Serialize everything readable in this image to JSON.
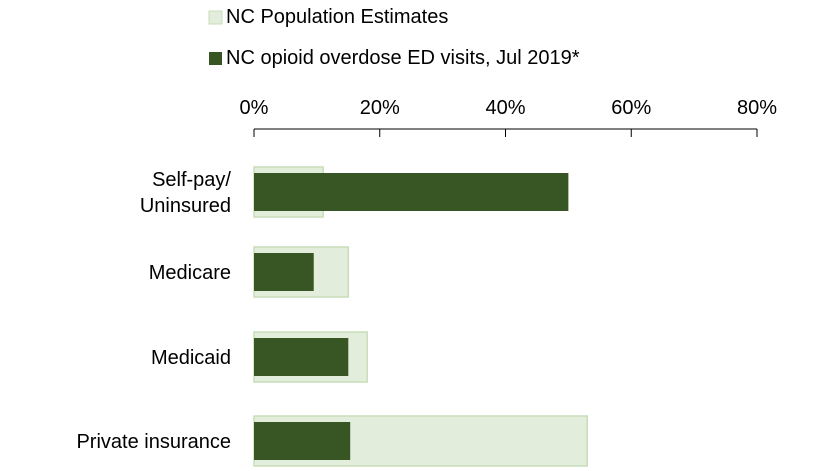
{
  "chart_data": {
    "type": "bar",
    "orientation": "horizontal",
    "categories": [
      "Self-pay/\nUninsured",
      "Medicare",
      "Medicaid",
      "Private insurance"
    ],
    "series": [
      {
        "name": "NC Population Estimates",
        "color": "#e3eddc",
        "edge_color": "#c9ddb9",
        "values": [
          11,
          15,
          18,
          53
        ]
      },
      {
        "name": "NC opioid overdose ED visits, Jul 2019*",
        "color": "#375623",
        "values": [
          50,
          9.5,
          15,
          15.3
        ]
      }
    ],
    "xlim": [
      0,
      80
    ],
    "x_ticks": [
      0,
      20,
      40,
      60,
      80
    ],
    "x_tick_labels": [
      "0%",
      "20%",
      "40%",
      "60%",
      "80%"
    ],
    "x_axis_position": "top",
    "legend_position": "top",
    "grid": false
  }
}
